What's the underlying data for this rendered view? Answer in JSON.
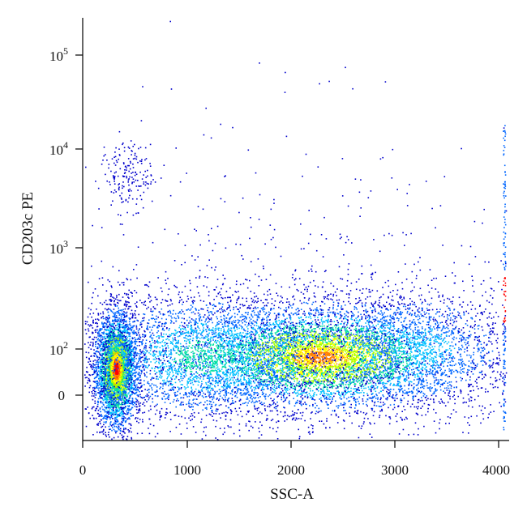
{
  "chart_data": {
    "type": "scatter",
    "plot_style": "flow-cytometry density dot plot",
    "xlabel": "SSC-A",
    "ylabel": "CD203c PE",
    "xlim": [
      -20,
      4100
    ],
    "y_scale": "biexponential (log above ~100, linear near 0)",
    "ylim": [
      -60,
      250000
    ],
    "x_ticks": [
      "0",
      "1000",
      "2000",
      "3000",
      "4000"
    ],
    "y_ticks": [
      {
        "base": "0",
        "exp": ""
      },
      {
        "base": "10",
        "exp": "2"
      },
      {
        "base": "10",
        "exp": "3"
      },
      {
        "base": "10",
        "exp": "4"
      },
      {
        "base": "10",
        "exp": "5"
      }
    ],
    "grid": false,
    "color_scale": [
      "#0000cc",
      "#0066ff",
      "#00c0ff",
      "#00e0a0",
      "#a0ff00",
      "#ffff00",
      "#ff8000",
      "#ff0000"
    ],
    "populations": [
      {
        "name": "",
        "center": [
          310,
          60
        ],
        "density": "very high"
      },
      {
        "name": "",
        "center": [
          2200,
          80
        ],
        "density": "high"
      },
      {
        "name": "",
        "center": [
          450,
          5000
        ],
        "density": "low"
      }
    ]
  }
}
